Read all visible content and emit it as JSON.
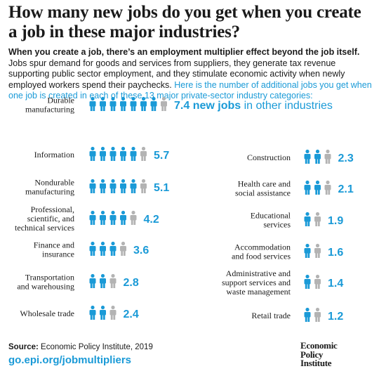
{
  "title": "How many new jobs do you get when you create a job in these major industries?",
  "intro": {
    "lead": "When you create a job, there’s an employment multiplier effect beyond the job itself.",
    "body": " Jobs spur demand for goods and services from suppliers, they generate tax revenue supporting public sector employment, and they stimulate economic activity when newly employed workers spend their paychecks. ",
    "highlight": "Here is the number of additional jobs you get when one job is created in each of these 13 major private-sector industry categories:"
  },
  "colors": {
    "accent": "#1a9ad7",
    "remainder": "#b3b3b3",
    "text": "#1a1a1a"
  },
  "icon": "person-icon",
  "chart_data": {
    "type": "pictogram",
    "unit_note": "new jobs in other industries",
    "categories": [
      "Durable manufacturing",
      "Information",
      "Nondurable manufacturing",
      "Professional, scientific, and technical services",
      "Finance and insurance",
      "Transportation and warehousing",
      "Wholesale trade",
      "Construction",
      "Health care and social assistance",
      "Educational services",
      "Accommodation and food services",
      "Administrative and support services and waste management",
      "Retail trade"
    ],
    "values": [
      7.4,
      5.7,
      5.1,
      4.2,
      3.6,
      2.8,
      2.4,
      2.3,
      2.1,
      1.9,
      1.6,
      1.4,
      1.2
    ],
    "value_labels": [
      "7.4",
      "5.7",
      "5.1",
      "4.2",
      "3.6",
      "2.8",
      "2.4",
      "2.3",
      "2.1",
      "1.9",
      "1.6",
      "1.4",
      "1.2"
    ],
    "first_label_suffix_bold": "new jobs",
    "first_label_suffix_rest": "in other industries"
  },
  "footer": {
    "source_label": "Source:",
    "source_text": "Economic Policy Institute, 2019",
    "url": "go.epi.org/jobmultipliers"
  },
  "logo": {
    "line1": "Economic",
    "line2": "Policy",
    "line3": "Institute"
  }
}
